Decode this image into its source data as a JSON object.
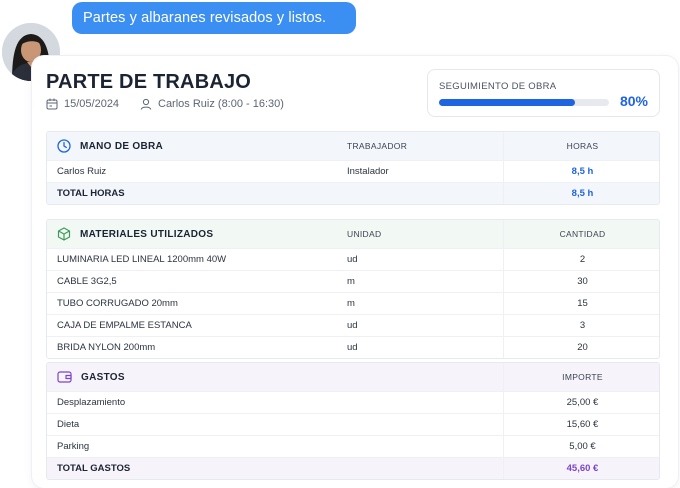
{
  "chat": {
    "message": "Partes y albaranes revisados y listos."
  },
  "report": {
    "title": "PARTE DE TRABAJO",
    "date": "15/05/2024",
    "worker": "Carlos Ruiz (8:00 - 16:30)"
  },
  "progress": {
    "label": "SEGUIMIENTO DE OBRA",
    "value_text": "80%",
    "fraction": 0.8,
    "color": "#1f64e0"
  },
  "labor": {
    "title": "MANO DE OBRA",
    "col2": "TRABAJADOR",
    "col3": "HORAS",
    "rows": [
      {
        "name": "Carlos Ruiz",
        "role": "Instalador",
        "hours": "8,5 h"
      }
    ],
    "total_label": "TOTAL HORAS",
    "total_value": "8,5 h"
  },
  "materials": {
    "title": "MATERIALES UTILIZADOS",
    "col2": "UNIDAD",
    "col3": "CANTIDAD",
    "rows": [
      {
        "item": "LUMINARIA LED LINEAL 1200mm 40W",
        "unit": "ud",
        "qty": "2"
      },
      {
        "item": "CABLE 3G2,5",
        "unit": "m",
        "qty": "30"
      },
      {
        "item": "TUBO CORRUGADO 20mm",
        "unit": "m",
        "qty": "15"
      },
      {
        "item": "CAJA DE EMPALME ESTANCA",
        "unit": "ud",
        "qty": "3"
      },
      {
        "item": "BRIDA NYLON 200mm",
        "unit": "ud",
        "qty": "20"
      }
    ]
  },
  "expenses": {
    "title": "GASTOS",
    "col3": "IMPORTE",
    "rows": [
      {
        "concept": "Desplazamiento",
        "amount": "25,00 €"
      },
      {
        "concept": "Dieta",
        "amount": "15,60 €"
      },
      {
        "concept": "Parking",
        "amount": "5,00 €"
      }
    ],
    "total_label": "TOTAL GASTOS",
    "total_value": "45,60 €"
  },
  "icons": {
    "labor": "clock-icon",
    "materials": "box-icon",
    "expenses": "wallet-icon",
    "date": "calendar-icon",
    "worker": "user-icon"
  },
  "colors": {
    "accent_blue": "#1f64e0",
    "bubble_blue": "#3b8ff3",
    "materials_green": "#3f9a5a",
    "expenses_purple": "#7b45c9"
  }
}
